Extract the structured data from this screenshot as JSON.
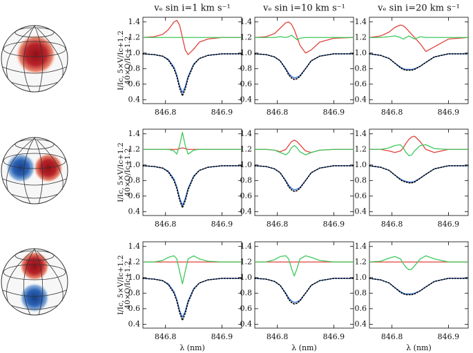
{
  "chart_data": [
    {
      "type": "line",
      "title": "vₑ sin i=1 km s⁻¹",
      "ylabel": [
        "I/Ic, 5×V/Ic+1.2",
        "40×Q/Ic+1.2"
      ],
      "x": [
        846.76,
        846.78,
        846.795,
        846.805,
        846.815,
        846.82,
        846.825,
        846.83,
        846.835,
        846.84,
        846.85,
        846.86,
        846.875,
        846.9,
        846.935
      ],
      "xlim": [
        846.76,
        846.935
      ],
      "xticks": [
        846.8,
        846.9
      ],
      "ylim": [
        0.35,
        1.46
      ],
      "yticks": [
        0.4,
        0.6,
        0.8,
        {
          "value": 1,
          "label": "1.0"
        },
        1.2,
        1.4
      ],
      "series": [
        {
          "color": "#2f6fd8",
          "values": [
            0.99,
            0.98,
            0.96,
            0.92,
            0.82,
            0.72,
            0.58,
            0.49,
            0.57,
            0.7,
            0.86,
            0.93,
            0.97,
            0.99,
            0.99
          ]
        },
        {
          "color": "#000000",
          "dash": true,
          "values": [
            0.99,
            0.98,
            0.96,
            0.91,
            0.8,
            0.7,
            0.55,
            0.45,
            0.54,
            0.68,
            0.85,
            0.93,
            0.97,
            0.99,
            0.99
          ]
        },
        {
          "color": "#e0413a",
          "values": [
            1.2,
            1.21,
            1.24,
            1.3,
            1.4,
            1.42,
            1.36,
            1.2,
            1.04,
            0.98,
            1.05,
            1.14,
            1.18,
            1.2,
            1.2
          ]
        },
        {
          "color": "#3cc85a",
          "values": [
            1.2,
            1.2,
            1.2,
            1.2,
            1.2,
            1.2,
            1.2,
            1.2,
            1.2,
            1.2,
            1.2,
            1.2,
            1.2,
            1.2,
            1.2
          ]
        }
      ]
    },
    {
      "type": "line",
      "title": "vₑ sin i=10 km s⁻¹",
      "x": [
        846.76,
        846.78,
        846.795,
        846.805,
        846.815,
        846.82,
        846.825,
        846.83,
        846.835,
        846.84,
        846.85,
        846.86,
        846.875,
        846.9,
        846.935
      ],
      "xlim": [
        846.76,
        846.935
      ],
      "xticks": [
        846.8,
        846.9
      ],
      "ylim": [
        0.35,
        1.46
      ],
      "yticks": [
        0.4,
        0.6,
        0.8,
        {
          "value": 1,
          "label": "1.0"
        },
        1.2,
        1.4
      ],
      "series": [
        {
          "color": "#2f6fd8",
          "values": [
            0.99,
            0.98,
            0.95,
            0.9,
            0.8,
            0.74,
            0.7,
            0.68,
            0.69,
            0.71,
            0.8,
            0.9,
            0.96,
            0.99,
            0.99
          ]
        },
        {
          "color": "#000000",
          "dash": true,
          "values": [
            0.99,
            0.98,
            0.95,
            0.9,
            0.79,
            0.72,
            0.68,
            0.66,
            0.67,
            0.7,
            0.8,
            0.9,
            0.96,
            0.99,
            0.99
          ]
        },
        {
          "color": "#e0413a",
          "values": [
            1.2,
            1.21,
            1.25,
            1.32,
            1.39,
            1.4,
            1.37,
            1.3,
            1.2,
            1.1,
            1.0,
            1.04,
            1.14,
            1.19,
            1.2
          ]
        },
        {
          "color": "#3cc85a",
          "values": [
            1.2,
            1.2,
            1.2,
            1.21,
            1.2,
            1.21,
            1.23,
            1.2,
            1.17,
            1.19,
            1.2,
            1.2,
            1.2,
            1.2,
            1.2
          ]
        }
      ]
    },
    {
      "type": "line",
      "title": "vₑ sin i=20 km s⁻¹",
      "x": [
        846.76,
        846.78,
        846.795,
        846.805,
        846.815,
        846.82,
        846.825,
        846.83,
        846.835,
        846.84,
        846.85,
        846.86,
        846.875,
        846.9,
        846.935
      ],
      "xlim": [
        846.76,
        846.935
      ],
      "xticks": [
        846.8,
        846.9
      ],
      "ylim": [
        0.35,
        1.46
      ],
      "yticks": [
        0.4,
        0.6,
        0.8,
        {
          "value": 1,
          "label": "1.0"
        },
        1.2,
        1.4
      ],
      "series": [
        {
          "color": "#2f6fd8",
          "values": [
            0.99,
            0.97,
            0.93,
            0.87,
            0.82,
            0.8,
            0.79,
            0.79,
            0.79,
            0.8,
            0.83,
            0.88,
            0.95,
            0.99,
            0.99
          ]
        },
        {
          "color": "#000000",
          "dash": true,
          "values": [
            0.99,
            0.97,
            0.93,
            0.87,
            0.81,
            0.79,
            0.78,
            0.78,
            0.78,
            0.79,
            0.83,
            0.88,
            0.95,
            0.99,
            0.99
          ]
        },
        {
          "color": "#e0413a",
          "values": [
            1.2,
            1.22,
            1.27,
            1.33,
            1.36,
            1.35,
            1.32,
            1.28,
            1.24,
            1.2,
            1.12,
            1.02,
            1.08,
            1.18,
            1.2
          ]
        },
        {
          "color": "#3cc85a",
          "values": [
            1.2,
            1.2,
            1.21,
            1.22,
            1.2,
            1.18,
            1.2,
            1.22,
            1.2,
            1.18,
            1.21,
            1.2,
            1.2,
            1.2,
            1.2
          ]
        }
      ]
    },
    {
      "type": "line",
      "ylabel": [
        "I/Ic, 5×V/Ic+1.2",
        "40×Q/Ic+1.2"
      ],
      "x": [
        846.76,
        846.78,
        846.795,
        846.805,
        846.815,
        846.82,
        846.825,
        846.83,
        846.835,
        846.84,
        846.85,
        846.86,
        846.875,
        846.9,
        846.935
      ],
      "xlim": [
        846.76,
        846.935
      ],
      "xticks": [
        846.8,
        846.9
      ],
      "ylim": [
        0.35,
        1.46
      ],
      "yticks": [
        0.4,
        0.6,
        0.8,
        {
          "value": 1,
          "label": "1.0"
        },
        1.2,
        1.4
      ],
      "series": [
        {
          "color": "#2f6fd8",
          "values": [
            0.99,
            0.98,
            0.96,
            0.92,
            0.82,
            0.72,
            0.58,
            0.48,
            0.57,
            0.7,
            0.86,
            0.93,
            0.97,
            0.99,
            0.99
          ]
        },
        {
          "color": "#000000",
          "dash": true,
          "values": [
            0.99,
            0.98,
            0.96,
            0.91,
            0.8,
            0.7,
            0.55,
            0.45,
            0.54,
            0.68,
            0.85,
            0.93,
            0.97,
            0.99,
            0.99
          ]
        },
        {
          "color": "#e0413a",
          "values": [
            1.2,
            1.2,
            1.2,
            1.2,
            1.2,
            1.2,
            1.21,
            1.22,
            1.21,
            1.2,
            1.2,
            1.2,
            1.2,
            1.2,
            1.2
          ]
        },
        {
          "color": "#3cc85a",
          "values": [
            1.2,
            1.2,
            1.2,
            1.2,
            1.18,
            1.14,
            1.25,
            1.42,
            1.25,
            1.14,
            1.19,
            1.2,
            1.2,
            1.2,
            1.2
          ]
        }
      ]
    },
    {
      "type": "line",
      "x": [
        846.76,
        846.78,
        846.795,
        846.805,
        846.815,
        846.82,
        846.825,
        846.83,
        846.835,
        846.84,
        846.85,
        846.86,
        846.875,
        846.9,
        846.935
      ],
      "xlim": [
        846.76,
        846.935
      ],
      "xticks": [
        846.8,
        846.9
      ],
      "ylim": [
        0.35,
        1.46
      ],
      "yticks": [
        0.4,
        0.6,
        0.8,
        {
          "value": 1,
          "label": "1.0"
        },
        1.2,
        1.4
      ],
      "series": [
        {
          "color": "#2f6fd8",
          "values": [
            0.99,
            0.98,
            0.95,
            0.9,
            0.8,
            0.74,
            0.7,
            0.68,
            0.69,
            0.71,
            0.8,
            0.9,
            0.96,
            0.99,
            0.99
          ]
        },
        {
          "color": "#000000",
          "dash": true,
          "values": [
            0.99,
            0.98,
            0.95,
            0.9,
            0.79,
            0.72,
            0.68,
            0.66,
            0.67,
            0.7,
            0.8,
            0.9,
            0.96,
            0.99,
            0.99
          ]
        },
        {
          "color": "#e0413a",
          "values": [
            1.2,
            1.2,
            1.19,
            1.17,
            1.2,
            1.25,
            1.3,
            1.32,
            1.3,
            1.26,
            1.18,
            1.16,
            1.19,
            1.2,
            1.2
          ]
        },
        {
          "color": "#3cc85a",
          "values": [
            1.2,
            1.2,
            1.19,
            1.16,
            1.13,
            1.16,
            1.22,
            1.25,
            1.22,
            1.17,
            1.13,
            1.16,
            1.19,
            1.2,
            1.2
          ]
        }
      ]
    },
    {
      "type": "line",
      "x": [
        846.76,
        846.78,
        846.795,
        846.805,
        846.815,
        846.82,
        846.825,
        846.83,
        846.835,
        846.84,
        846.85,
        846.86,
        846.875,
        846.9,
        846.935
      ],
      "xlim": [
        846.76,
        846.935
      ],
      "xticks": [
        846.8,
        846.9
      ],
      "ylim": [
        0.35,
        1.46
      ],
      "yticks": [
        0.4,
        0.6,
        0.8,
        {
          "value": 1,
          "label": "1.0"
        },
        1.2,
        1.4
      ],
      "series": [
        {
          "color": "#2f6fd8",
          "values": [
            0.99,
            0.97,
            0.93,
            0.87,
            0.82,
            0.8,
            0.79,
            0.78,
            0.78,
            0.79,
            0.83,
            0.88,
            0.95,
            0.99,
            0.99
          ]
        },
        {
          "color": "#000000",
          "dash": true,
          "values": [
            0.99,
            0.97,
            0.93,
            0.87,
            0.81,
            0.79,
            0.78,
            0.77,
            0.77,
            0.78,
            0.83,
            0.88,
            0.95,
            0.99,
            0.99
          ]
        },
        {
          "color": "#e0413a",
          "values": [
            1.2,
            1.2,
            1.18,
            1.16,
            1.18,
            1.22,
            1.28,
            1.33,
            1.36,
            1.37,
            1.3,
            1.2,
            1.16,
            1.2,
            1.2
          ]
        },
        {
          "color": "#3cc85a",
          "values": [
            1.2,
            1.2,
            1.22,
            1.25,
            1.26,
            1.22,
            1.16,
            1.12,
            1.13,
            1.18,
            1.25,
            1.26,
            1.21,
            1.2,
            1.2
          ]
        }
      ]
    },
    {
      "type": "line",
      "ylabel": [
        "I/Ic, 5×V/Ic+1.2",
        "40×Q/Ic+1.2"
      ],
      "xlabel": "λ (nm)",
      "x": [
        846.76,
        846.78,
        846.795,
        846.805,
        846.815,
        846.82,
        846.825,
        846.83,
        846.835,
        846.84,
        846.85,
        846.86,
        846.875,
        846.9,
        846.935
      ],
      "xlim": [
        846.76,
        846.935
      ],
      "xticks": [
        846.8,
        846.9
      ],
      "ylim": [
        0.35,
        1.46
      ],
      "yticks": [
        0.4,
        0.6,
        0.8,
        {
          "value": 1,
          "label": "1.0"
        },
        1.2,
        1.4
      ],
      "series": [
        {
          "color": "#2f6fd8",
          "values": [
            0.99,
            0.98,
            0.96,
            0.92,
            0.82,
            0.72,
            0.58,
            0.49,
            0.57,
            0.7,
            0.86,
            0.93,
            0.97,
            0.99,
            0.99
          ]
        },
        {
          "color": "#000000",
          "dash": true,
          "values": [
            0.99,
            0.98,
            0.96,
            0.91,
            0.8,
            0.7,
            0.55,
            0.45,
            0.54,
            0.68,
            0.85,
            0.93,
            0.97,
            0.99,
            0.99
          ]
        },
        {
          "color": "#e0413a",
          "values": [
            1.2,
            1.2,
            1.2,
            1.2,
            1.2,
            1.2,
            1.2,
            1.2,
            1.2,
            1.2,
            1.2,
            1.2,
            1.2,
            1.2,
            1.2
          ]
        },
        {
          "color": "#3cc85a",
          "values": [
            1.2,
            1.2,
            1.22,
            1.26,
            1.28,
            1.24,
            1.08,
            0.92,
            1.08,
            1.24,
            1.28,
            1.24,
            1.21,
            1.2,
            1.2
          ]
        }
      ]
    },
    {
      "type": "line",
      "xlabel": "λ (nm)",
      "x": [
        846.76,
        846.78,
        846.795,
        846.805,
        846.815,
        846.82,
        846.825,
        846.83,
        846.835,
        846.84,
        846.85,
        846.86,
        846.875,
        846.9,
        846.935
      ],
      "xlim": [
        846.76,
        846.935
      ],
      "xticks": [
        846.8,
        846.9
      ],
      "ylim": [
        0.35,
        1.46
      ],
      "yticks": [
        0.4,
        0.6,
        0.8,
        {
          "value": 1,
          "label": "1.0"
        },
        1.2,
        1.4
      ],
      "series": [
        {
          "color": "#2f6fd8",
          "values": [
            0.99,
            0.98,
            0.95,
            0.9,
            0.8,
            0.74,
            0.7,
            0.68,
            0.69,
            0.71,
            0.8,
            0.9,
            0.96,
            0.99,
            0.99
          ]
        },
        {
          "color": "#000000",
          "dash": true,
          "values": [
            0.99,
            0.98,
            0.95,
            0.9,
            0.79,
            0.72,
            0.68,
            0.66,
            0.67,
            0.7,
            0.8,
            0.9,
            0.96,
            0.99,
            0.99
          ]
        },
        {
          "color": "#e0413a",
          "values": [
            1.2,
            1.2,
            1.2,
            1.2,
            1.2,
            1.2,
            1.2,
            1.2,
            1.2,
            1.2,
            1.2,
            1.2,
            1.2,
            1.2,
            1.2
          ]
        },
        {
          "color": "#3cc85a",
          "values": [
            1.2,
            1.2,
            1.23,
            1.27,
            1.28,
            1.24,
            1.12,
            1.02,
            1.12,
            1.24,
            1.28,
            1.26,
            1.22,
            1.2,
            1.2
          ]
        }
      ]
    },
    {
      "type": "line",
      "xlabel": "λ (nm)",
      "x": [
        846.76,
        846.78,
        846.795,
        846.805,
        846.815,
        846.82,
        846.825,
        846.83,
        846.835,
        846.84,
        846.85,
        846.86,
        846.875,
        846.9,
        846.935
      ],
      "xlim": [
        846.76,
        846.935
      ],
      "xticks": [
        846.8,
        846.9
      ],
      "ylim": [
        0.35,
        1.46
      ],
      "yticks": [
        0.4,
        0.6,
        0.8,
        {
          "value": 1,
          "label": "1.0"
        },
        1.2,
        1.4
      ],
      "series": [
        {
          "color": "#2f6fd8",
          "values": [
            0.99,
            0.97,
            0.93,
            0.87,
            0.82,
            0.8,
            0.79,
            0.79,
            0.79,
            0.8,
            0.83,
            0.88,
            0.95,
            0.99,
            0.99
          ]
        },
        {
          "color": "#000000",
          "dash": true,
          "values": [
            0.99,
            0.97,
            0.93,
            0.87,
            0.81,
            0.79,
            0.78,
            0.78,
            0.78,
            0.79,
            0.83,
            0.88,
            0.95,
            0.99,
            0.99
          ]
        },
        {
          "color": "#e0413a",
          "values": [
            1.2,
            1.2,
            1.2,
            1.2,
            1.2,
            1.2,
            1.2,
            1.2,
            1.2,
            1.2,
            1.2,
            1.2,
            1.2,
            1.2,
            1.2
          ]
        },
        {
          "color": "#3cc85a",
          "values": [
            1.2,
            1.21,
            1.25,
            1.27,
            1.24,
            1.18,
            1.13,
            1.1,
            1.11,
            1.15,
            1.24,
            1.28,
            1.24,
            1.2,
            1.2
          ]
        }
      ]
    }
  ]
}
